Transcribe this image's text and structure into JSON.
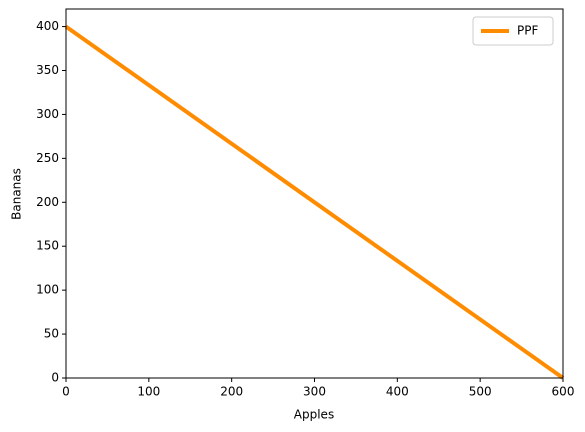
{
  "chart_data": {
    "type": "line",
    "xlabel": "Apples",
    "ylabel": "Bananas",
    "x": [
      0,
      600
    ],
    "series": [
      {
        "name": "PPF",
        "color": "#ff8c00",
        "values": [
          400,
          0
        ]
      }
    ],
    "xlim": [
      0,
      600
    ],
    "xticks": [
      0,
      100,
      200,
      300,
      400,
      500,
      600
    ],
    "ylim": [
      0,
      420
    ],
    "yticks": [
      0,
      50,
      100,
      150,
      200,
      250,
      300,
      350,
      400
    ],
    "grid": false,
    "legend": "upper-right"
  }
}
